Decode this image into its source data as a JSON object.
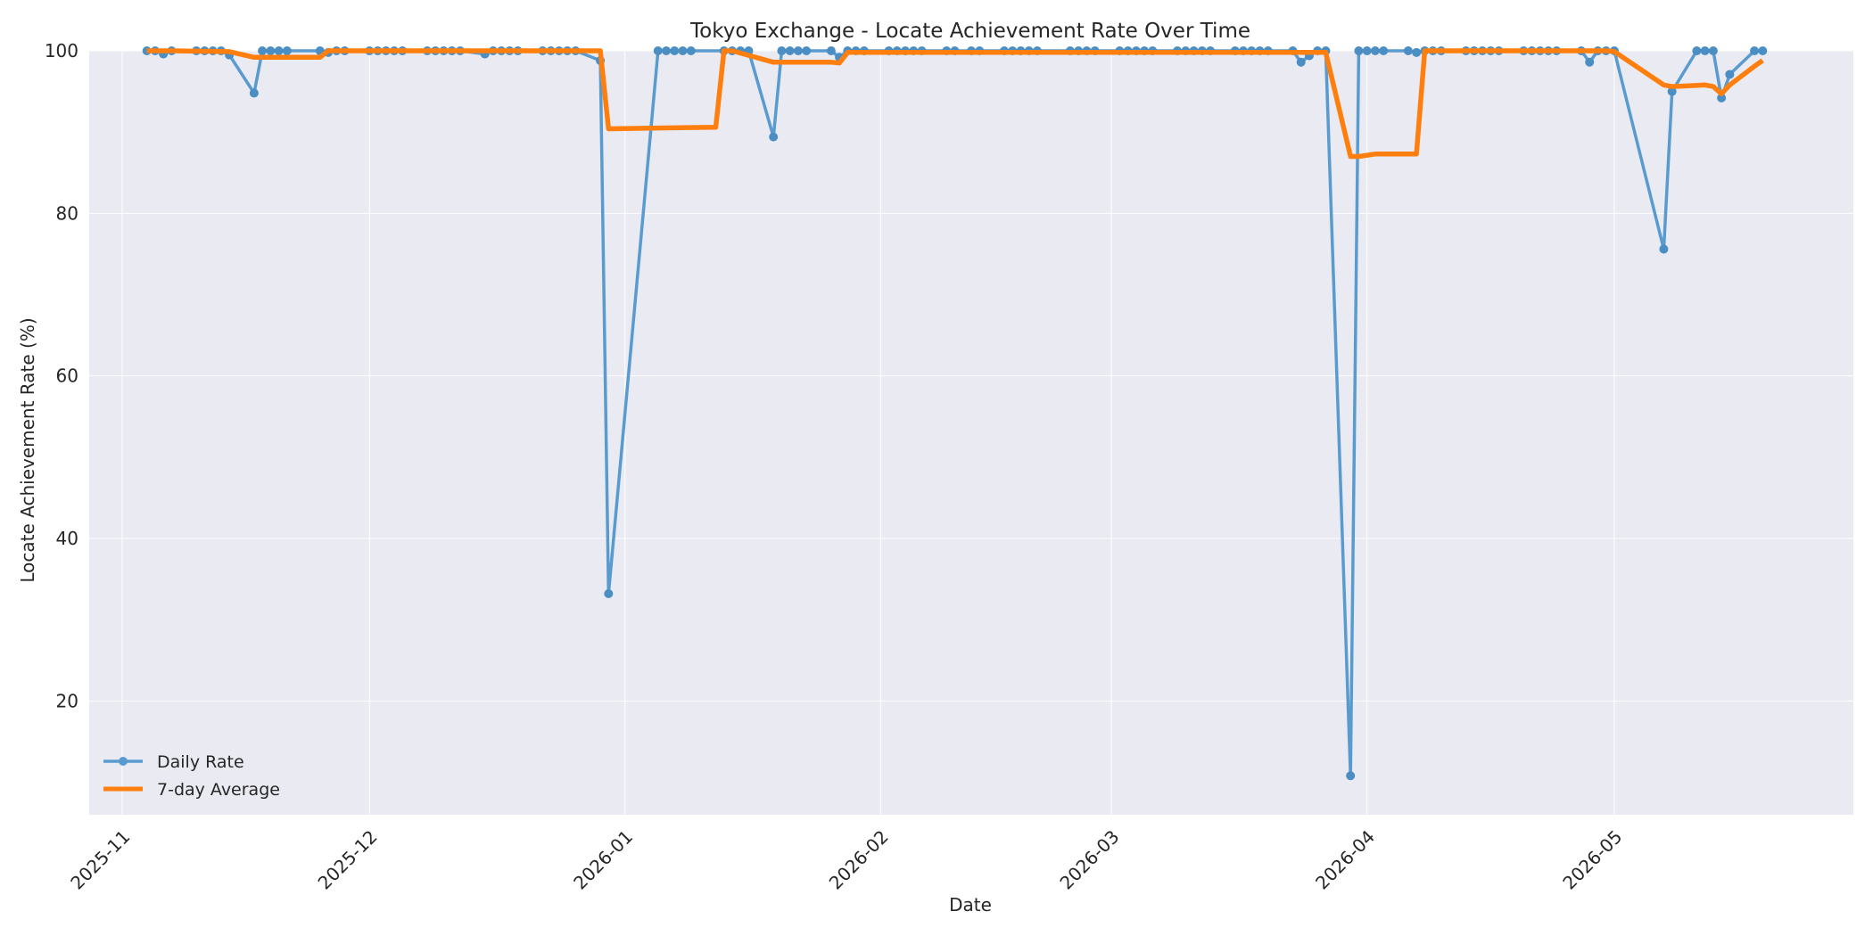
{
  "chart_data": {
    "type": "line",
    "title": "Tokyo Exchange - Locate Achievement Rate Over Time",
    "xlabel": "Date",
    "ylabel": "Locate Achievement Rate (%)",
    "xlim": [
      "2025-10-28",
      "2026-05-30"
    ],
    "ylim": [
      6,
      100
    ],
    "x_ticks": [
      "2025-11",
      "2025-12",
      "2026-01",
      "2026-02",
      "2026-03",
      "2026-04",
      "2026-05"
    ],
    "y_ticks": [
      20,
      40,
      60,
      80,
      100
    ],
    "grid": true,
    "legend_position": "bottom-left",
    "colors": {
      "daily": "#5a9bcf",
      "avg": "#ff7f0e",
      "plot_bg": "#eaeaf2",
      "grid": "#ffffff"
    },
    "series": [
      {
        "name": "Daily Rate",
        "x": [
          "2025-11-04",
          "2025-11-05",
          "2025-11-06",
          "2025-11-07",
          "2025-11-10",
          "2025-11-11",
          "2025-11-12",
          "2025-11-13",
          "2025-11-14",
          "2025-11-17",
          "2025-11-18",
          "2025-11-19",
          "2025-11-20",
          "2025-11-21",
          "2025-11-25",
          "2025-11-26",
          "2025-11-27",
          "2025-11-28",
          "2025-12-01",
          "2025-12-02",
          "2025-12-03",
          "2025-12-04",
          "2025-12-05",
          "2025-12-08",
          "2025-12-09",
          "2025-12-10",
          "2025-12-11",
          "2025-12-12",
          "2025-12-15",
          "2025-12-16",
          "2025-12-17",
          "2025-12-18",
          "2025-12-19",
          "2025-12-22",
          "2025-12-23",
          "2025-12-24",
          "2025-12-25",
          "2025-12-26",
          "2025-12-29",
          "2025-12-30",
          "2026-01-05",
          "2026-01-06",
          "2026-01-07",
          "2026-01-08",
          "2026-01-09",
          "2026-01-13",
          "2026-01-14",
          "2026-01-15",
          "2026-01-16",
          "2026-01-19",
          "2026-01-20",
          "2026-01-21",
          "2026-01-22",
          "2026-01-23",
          "2026-01-26",
          "2026-01-27",
          "2026-01-28",
          "2026-01-29",
          "2026-01-30",
          "2026-02-02",
          "2026-02-03",
          "2026-02-04",
          "2026-02-05",
          "2026-02-06",
          "2026-02-09",
          "2026-02-10",
          "2026-02-12",
          "2026-02-13",
          "2026-02-16",
          "2026-02-17",
          "2026-02-18",
          "2026-02-19",
          "2026-02-20",
          "2026-02-24",
          "2026-02-25",
          "2026-02-26",
          "2026-02-27",
          "2026-03-02",
          "2026-03-03",
          "2026-03-04",
          "2026-03-05",
          "2026-03-06",
          "2026-03-09",
          "2026-03-10",
          "2026-03-11",
          "2026-03-12",
          "2026-03-13",
          "2026-03-16",
          "2026-03-17",
          "2026-03-18",
          "2026-03-19",
          "2026-03-20",
          "2026-03-23",
          "2026-03-24",
          "2026-03-25",
          "2026-03-26",
          "2026-03-27",
          "2026-03-30",
          "2026-03-31",
          "2026-04-01",
          "2026-04-02",
          "2026-04-03",
          "2026-04-06",
          "2026-04-07",
          "2026-04-08",
          "2026-04-09",
          "2026-04-10",
          "2026-04-13",
          "2026-04-14",
          "2026-04-15",
          "2026-04-16",
          "2026-04-17",
          "2026-04-20",
          "2026-04-21",
          "2026-04-22",
          "2026-04-23",
          "2026-04-24",
          "2026-04-27",
          "2026-04-28",
          "2026-04-29",
          "2026-04-30",
          "2026-05-01",
          "2026-05-07",
          "2026-05-08",
          "2026-05-11",
          "2026-05-12",
          "2026-05-13",
          "2026-05-14",
          "2026-05-15",
          "2026-05-18",
          "2026-05-19"
        ],
        "y": [
          100,
          100,
          99.6,
          100,
          100,
          100,
          100,
          100,
          99.5,
          94.8,
          100,
          100,
          100,
          100,
          100,
          99.8,
          100,
          100,
          100,
          100,
          100,
          100,
          100,
          100,
          100,
          100,
          100,
          100,
          99.6,
          100,
          100,
          100,
          100,
          100,
          100,
          100,
          100,
          100,
          98.8,
          33.2,
          100,
          100,
          100,
          100,
          100,
          100,
          100,
          100,
          100,
          89.4,
          100,
          100,
          100,
          100,
          100,
          99.2,
          100,
          100,
          100,
          100,
          100,
          100,
          100,
          100,
          100,
          100,
          100,
          100,
          100,
          100,
          100,
          100,
          100,
          100,
          100,
          100,
          100,
          100,
          100,
          100,
          100,
          100,
          100,
          100,
          100,
          100,
          100,
          100,
          100,
          100,
          100,
          100,
          100,
          98.6,
          99.4,
          100,
          100,
          10.8,
          100,
          100,
          100,
          100,
          100,
          99.8,
          100,
          100,
          100,
          100,
          100,
          100,
          100,
          100,
          100,
          100,
          100,
          100,
          100,
          100,
          98.6,
          100,
          100,
          100,
          75.6,
          95.0,
          100,
          100,
          100,
          94.2,
          97.1,
          100,
          100
        ]
      },
      {
        "name": "7-day Average",
        "x": [
          "2025-11-04",
          "2025-11-07",
          "2025-11-14",
          "2025-11-17",
          "2025-11-25",
          "2025-11-26",
          "2025-12-29",
          "2025-12-30",
          "2026-01-12",
          "2026-01-13",
          "2026-01-14",
          "2026-01-19",
          "2026-01-26",
          "2026-01-27",
          "2026-01-28",
          "2026-03-27",
          "2026-03-30",
          "2026-03-31",
          "2026-04-02",
          "2026-04-07",
          "2026-04-08",
          "2026-04-30",
          "2026-05-01",
          "2026-05-07",
          "2026-05-08",
          "2026-05-12",
          "2026-05-13",
          "2026-05-14",
          "2026-05-15",
          "2026-05-18",
          "2026-05-19"
        ],
        "y": [
          100,
          100,
          99.9,
          99.2,
          99.2,
          100,
          100,
          90.4,
          90.6,
          100,
          100,
          98.6,
          98.6,
          98.5,
          99.8,
          99.8,
          87.0,
          87.0,
          87.3,
          87.3,
          100,
          100,
          99.9,
          95.8,
          95.6,
          95.8,
          95.6,
          94.7,
          95.8,
          98.1,
          98.8
        ]
      }
    ]
  }
}
